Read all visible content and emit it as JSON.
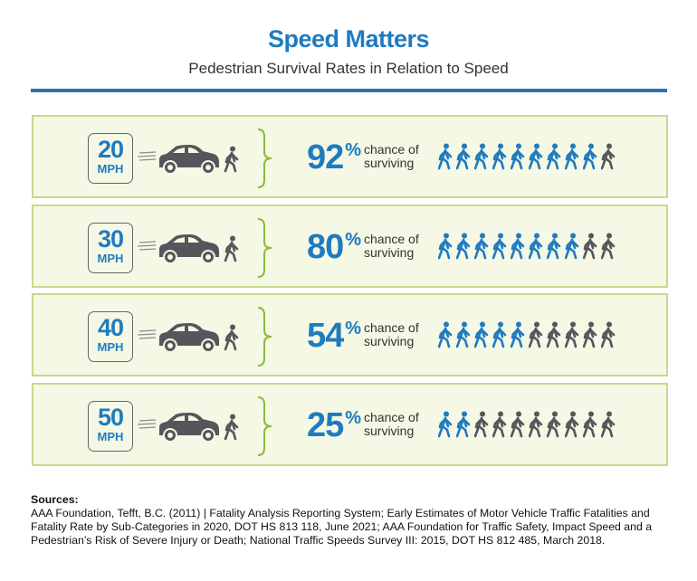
{
  "header": {
    "title": "Speed Matters",
    "subtitle": "Pedestrian Survival Rates in Relation to Speed"
  },
  "colors": {
    "accent": "#1f7bc0",
    "gray": "#55565b",
    "row_bg": "#f4f8e4",
    "row_border": "#c5da8e"
  },
  "rows": [
    {
      "speed": "20",
      "unit": "MPH",
      "percent": "92",
      "percent_sign": "%",
      "line1": "chance of",
      "line2": "surviving",
      "survivors_of_10": 9
    },
    {
      "speed": "30",
      "unit": "MPH",
      "percent": "80",
      "percent_sign": "%",
      "line1": "chance of",
      "line2": "surviving",
      "survivors_of_10": 8
    },
    {
      "speed": "40",
      "unit": "MPH",
      "percent": "54",
      "percent_sign": "%",
      "line1": "chance of",
      "line2": "surviving",
      "survivors_of_10": 5
    },
    {
      "speed": "50",
      "unit": "MPH",
      "percent": "25",
      "percent_sign": "%",
      "line1": "chance of",
      "line2": "surviving",
      "survivors_of_10": 2
    }
  ],
  "icons": {
    "vehicle": "car-icon",
    "person": "pedestrian-icon",
    "motion": "speed-lines-icon",
    "group": "brace-icon"
  },
  "sources": {
    "heading": "Sources:",
    "text": "AAA Foundation, Tefft, B.C. (2011)  |  Fatality Analysis Reporting System; Early Estimates of Motor Vehicle Traffic Fatalities and Fatality Rate by Sub-Categories in 2020, DOT HS 813 118, June 2021; AAA Foundation for Traffic Safety, Impact Speed and a Pedestrian’s Risk of Severe Injury or Death; National Traffic Speeds Survey III: 2015, DOT HS 812 485, March 2018."
  }
}
